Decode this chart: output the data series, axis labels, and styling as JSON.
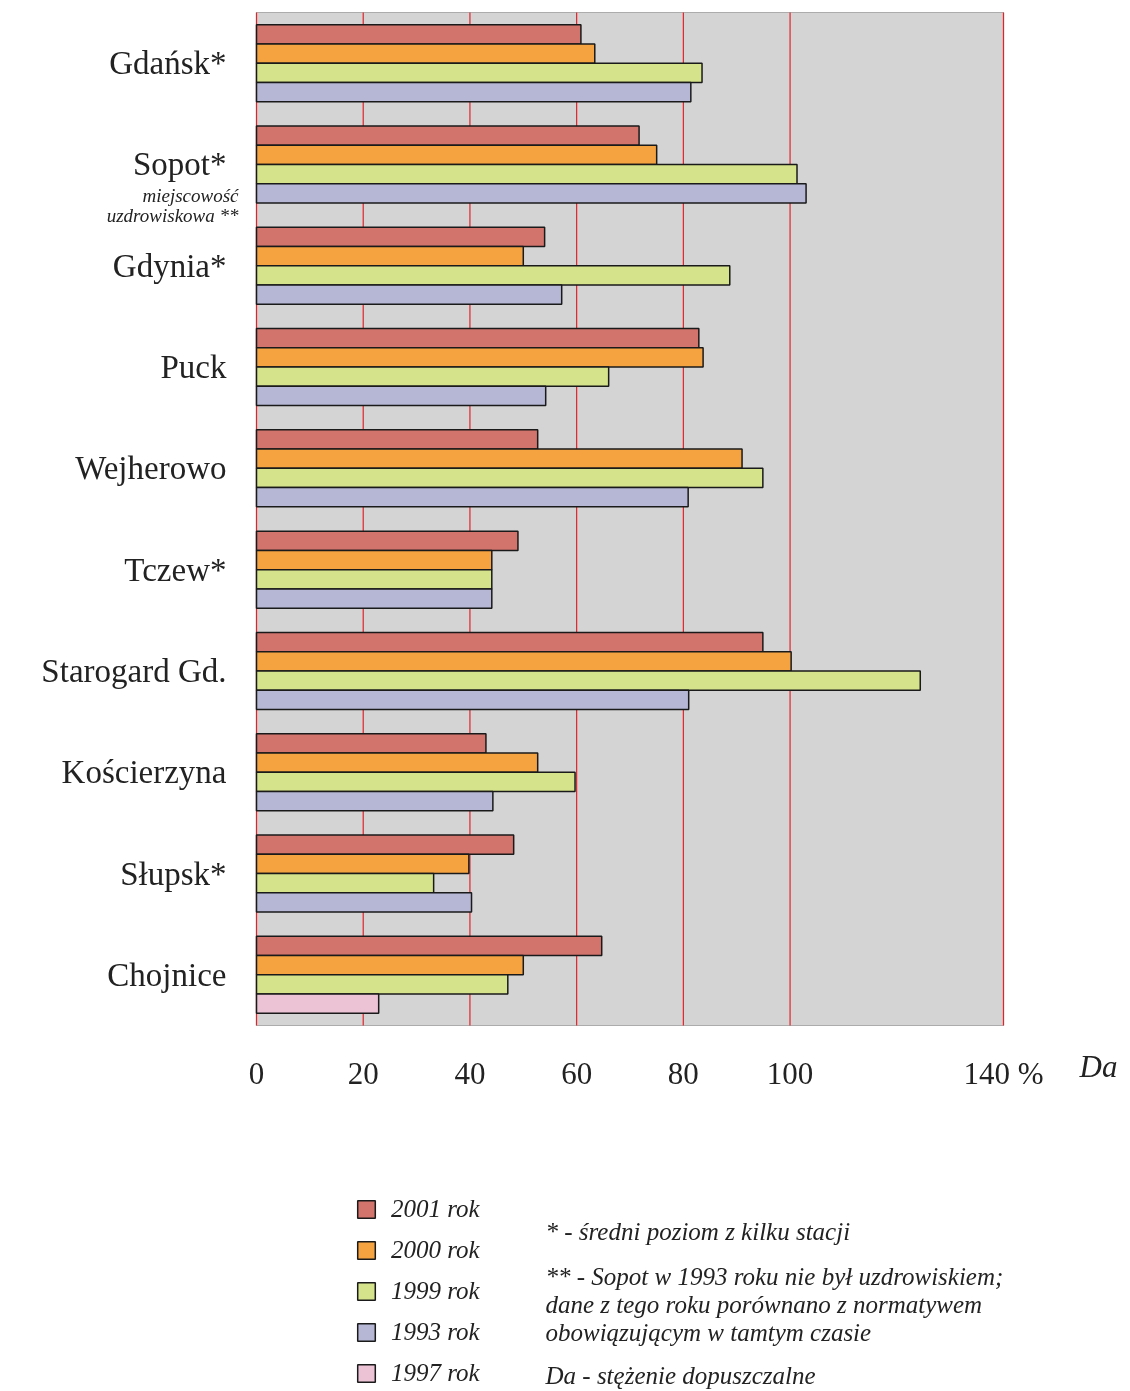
{
  "chart_data": {
    "type": "bar",
    "orientation": "horizontal",
    "categories": [
      "Gdańsk*",
      "Sopot*",
      "Gdynia*",
      "Puck",
      "Wejherowo",
      "Tczew*",
      "Starogard Gd.",
      "Kościerzyna",
      "Słupsk*",
      "Chojnice"
    ],
    "series": [
      {
        "name": "2001 rok",
        "color": "#d2736c",
        "values": [
          60.8,
          71.7,
          54,
          82.9,
          52.7,
          49,
          94.9,
          43,
          48.2,
          64.7
        ]
      },
      {
        "name": "2000 rok",
        "color": "#f4a340",
        "values": [
          63.4,
          75,
          50,
          83.7,
          91,
          44.1,
          100.2,
          52.7,
          39.8,
          50
        ]
      },
      {
        "name": "1999 rok",
        "color": "#d5e38a",
        "values": [
          83.5,
          101.3,
          88.7,
          66,
          94.9,
          44.1,
          124.4,
          59.7,
          33.2,
          47.1
        ]
      },
      {
        "name": "1993 rok",
        "color": "#b5b7d5",
        "values": [
          81.4,
          103,
          57.2,
          54.2,
          80.9,
          44.1,
          81,
          44.3,
          40.3,
          null
        ]
      },
      {
        "name": "1997 rok",
        "color": "#ebc3d4",
        "values": [
          null,
          null,
          null,
          null,
          null,
          null,
          null,
          null,
          null,
          22.9
        ]
      }
    ],
    "xlim": [
      0,
      140
    ],
    "xticks": [
      0,
      20,
      40,
      60,
      80,
      100,
      {
        "value": 140,
        "label": "140 %"
      }
    ],
    "xlabel": "Da",
    "grid": "x",
    "legend": "bottom",
    "annotations": [
      "miejscowość\nuzdrowiskowa **",
      "*  - średni poziom z kilku stacji",
      "** - Sopot w 1993 roku nie był uzdrowiskiem;\n      dane z tego roku porównano z normatywem\n      obowiązującym w tamtym czasie",
      "Da - stężenie dopuszczalne"
    ]
  }
}
